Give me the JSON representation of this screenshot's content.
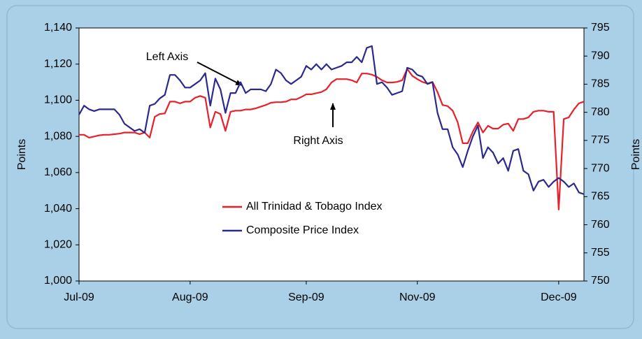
{
  "chart_data": {
    "type": "line",
    "y_label": "Points",
    "y2_label": "Points",
    "annotations": [
      "Left Axis",
      "Right Axis"
    ],
    "categories": [
      "Jul-09",
      null,
      null,
      null,
      null,
      null,
      null,
      null,
      null,
      null,
      null,
      null,
      null,
      null,
      null,
      null,
      null,
      null,
      null,
      null,
      null,
      null,
      "Aug-09",
      null,
      null,
      null,
      null,
      null,
      null,
      null,
      null,
      null,
      null,
      null,
      null,
      null,
      null,
      null,
      null,
      null,
      null,
      null,
      null,
      null,
      null,
      "Sep-09",
      null,
      null,
      null,
      null,
      null,
      null,
      null,
      null,
      null,
      null,
      null,
      null,
      null,
      null,
      null,
      null,
      null,
      null,
      null,
      null,
      null,
      "Nov-09",
      null,
      null,
      null,
      null,
      null,
      null,
      null,
      null,
      null,
      null,
      null,
      null,
      null,
      null,
      null,
      null,
      null,
      null,
      null,
      null,
      null,
      null,
      null,
      null,
      null,
      null,
      null,
      "Dec-09",
      null,
      null,
      null,
      null,
      null
    ],
    "ylim": [
      1000,
      1140
    ],
    "yticks": [
      {
        "value": 1000,
        "label": "1,000"
      },
      {
        "value": 1020,
        "label": "1,020"
      },
      {
        "value": 1040,
        "label": "1,040"
      },
      {
        "value": 1060,
        "label": "1,060"
      },
      {
        "value": 1080,
        "label": "1,080"
      },
      {
        "value": 1100,
        "label": "1,100"
      },
      {
        "value": 1120,
        "label": "1,120"
      },
      {
        "value": 1140,
        "label": "1,140"
      }
    ],
    "y2lim": [
      750,
      795
    ],
    "y2ticks": [
      750,
      755,
      760,
      765,
      770,
      775,
      780,
      785,
      790,
      795
    ],
    "series": [
      {
        "name": "All Trinidad & Tobago Index",
        "color": "#e8202a",
        "axis": "y2",
        "values": [
          776.0,
          776.0,
          775.5,
          775.7,
          775.9,
          776.0,
          776.0,
          776.1,
          776.2,
          776.4,
          776.4,
          776.4,
          776.1,
          776.4,
          775.5,
          779.2,
          779.7,
          779.8,
          781.9,
          781.9,
          781.6,
          781.9,
          781.9,
          782.6,
          782.9,
          782.6,
          777.3,
          780.1,
          779.7,
          776.7,
          780.1,
          780.3,
          780.3,
          780.5,
          780.5,
          780.7,
          781.0,
          781.3,
          781.7,
          781.8,
          781.8,
          781.9,
          782.3,
          782.3,
          782.7,
          783.2,
          783.2,
          783.4,
          783.6,
          784.1,
          785.3,
          785.9,
          785.9,
          785.9,
          785.7,
          785.3,
          786.9,
          786.9,
          786.7,
          786.3,
          785.7,
          785.3,
          785.3,
          785.4,
          785.7,
          787.7,
          786.5,
          785.9,
          785.4,
          785.1,
          785.4,
          783.6,
          781.3,
          781.1,
          780.3,
          778.2,
          774.5,
          774.5,
          776.6,
          778.2,
          776.4,
          777.6,
          777.1,
          777.1,
          777.8,
          778.0,
          776.7,
          778.8,
          778.8,
          779.1,
          780.1,
          780.3,
          780.3,
          780.1,
          780.1,
          762.7,
          778.8,
          779.1,
          780.5,
          781.6,
          781.9
        ]
      },
      {
        "name": "Composite Price Index",
        "color": "#2b2a8c",
        "values": [
          1092,
          1097,
          1095,
          1094,
          1095,
          1095,
          1095,
          1095,
          1092,
          1087,
          1085,
          1083,
          1084,
          1082,
          1097,
          1098,
          1101,
          1103,
          1114,
          1114,
          1111,
          1107,
          1107,
          1109,
          1111,
          1115,
          1097,
          1112,
          1106,
          1093,
          1104,
          1104,
          1110,
          1104,
          1106,
          1106,
          1106,
          1105,
          1109,
          1117,
          1115,
          1111,
          1109,
          1111,
          1113,
          1119,
          1117,
          1120,
          1117,
          1120,
          1117,
          1118,
          1119,
          1121,
          1121,
          1124,
          1121,
          1129,
          1130,
          1109,
          1110,
          1107,
          1103,
          1104,
          1105,
          1118,
          1117,
          1114,
          1113,
          1109,
          1110,
          1093,
          1084,
          1084,
          1074,
          1070,
          1063,
          1072,
          1080,
          1086,
          1068,
          1074,
          1071,
          1065,
          1068,
          1061,
          1072,
          1073,
          1061,
          1059,
          1050,
          1055,
          1056,
          1052,
          1055,
          1057,
          1055,
          1052,
          1054,
          1049,
          1048
        ]
      }
    ]
  }
}
